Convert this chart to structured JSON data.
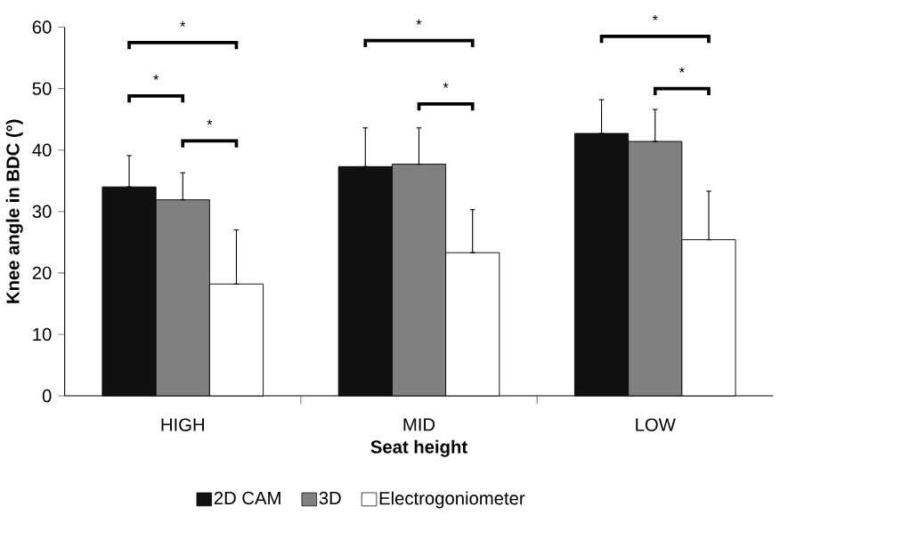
{
  "chart_data": {
    "type": "bar",
    "xlabel": "Seat height",
    "ylabel": "Knee angle in BDC  (°)",
    "categories": [
      "HIGH",
      "MID",
      "LOW"
    ],
    "series": [
      {
        "name": "2D CAM",
        "color": "#111111",
        "values": [
          34.0,
          37.3,
          42.7
        ],
        "errors": [
          [
            34.0,
            39.1
          ],
          [
            37.3,
            43.6
          ],
          [
            42.7,
            48.2
          ]
        ]
      },
      {
        "name": "3D",
        "color": "#808080",
        "values": [
          31.9,
          37.7,
          41.4
        ],
        "errors": [
          [
            31.9,
            36.3
          ],
          [
            37.7,
            43.6
          ],
          [
            41.4,
            46.6
          ]
        ]
      },
      {
        "name": "Electrogoniometer",
        "color": "#ffffff",
        "values": [
          18.2,
          23.3,
          25.4
        ],
        "errors": [
          [
            18.2,
            27.0
          ],
          [
            23.3,
            30.3
          ],
          [
            25.4,
            33.3
          ]
        ]
      }
    ],
    "ylim": [
      0,
      60
    ],
    "yticks": [
      0,
      10,
      20,
      30,
      40,
      50,
      60
    ],
    "annotations": [
      "*",
      "*",
      "*",
      "*",
      "*",
      "*",
      "*"
    ],
    "legend": "bottom",
    "grid": false
  }
}
